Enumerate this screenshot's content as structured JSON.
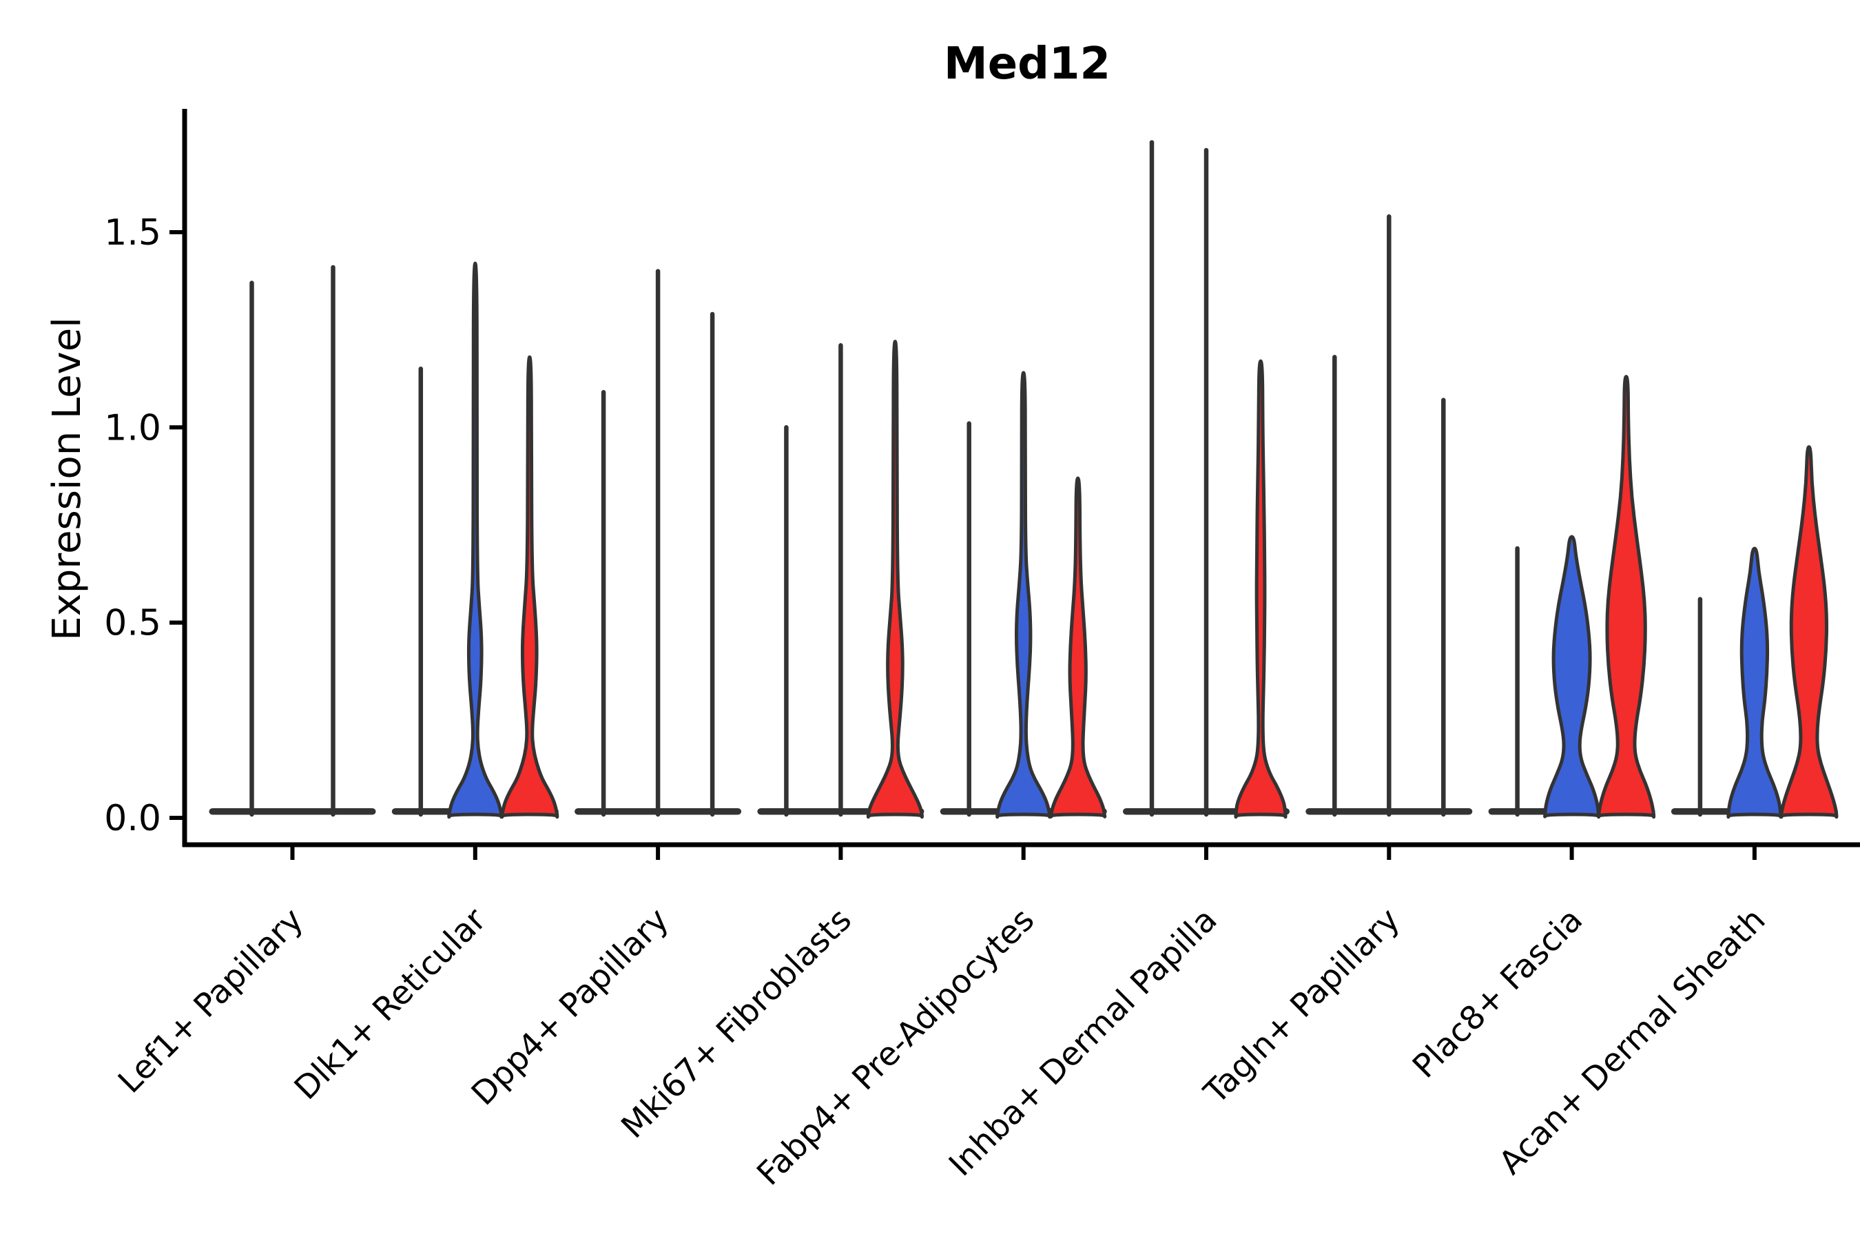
{
  "title": "Med12",
  "ylabel": "Expression Level",
  "chart_data": {
    "type": "violin",
    "title": "Med12",
    "xlabel": "",
    "ylabel": "Expression Level",
    "yticks": [
      "0.0",
      "0.5",
      "1.0",
      "1.5"
    ],
    "ytick_values": [
      0.0,
      0.5,
      1.0,
      1.5
    ],
    "ylim": [
      -0.07,
      1.82
    ],
    "grid": false,
    "legend": "none",
    "colors": {
      "blue": "#3B61D6",
      "red": "#F32C2C",
      "outline": "#333333",
      "background": "#ffffff"
    },
    "categories": [
      "Lef1+ Papillary",
      "Dlk1+ Reticular",
      "Dpp4+ Papillary",
      "Mki67+ Fibroblasts",
      "Fabp4+ Pre-Adipocytes",
      "Inhba+ Dermal Papilla",
      "Tagln+ Papillary",
      "Plac8+ Fascia",
      "Acan+ Dermal Sheath"
    ],
    "groups": [
      {
        "label": "Lef1+ Papillary",
        "violins": [
          {
            "offset": -59,
            "fill": "none",
            "max": 1.37
          },
          {
            "offset": 59,
            "fill": "none",
            "max": 1.41
          }
        ]
      },
      {
        "label": "Dlk1+ Reticular",
        "violins": [
          {
            "offset": -79,
            "fill": "none",
            "max": 1.15
          },
          {
            "offset": 0,
            "fill": "blue",
            "max": 1.42,
            "profile": [
              [
                1.42,
                2.5
              ],
              [
                1.0,
                2.5
              ],
              [
                0.62,
                3
              ],
              [
                0.54,
                6
              ],
              [
                0.47,
                9
              ],
              [
                0.41,
                9.5
              ],
              [
                0.34,
                8
              ],
              [
                0.28,
                5
              ],
              [
                0.22,
                3
              ],
              [
                0.18,
                4
              ],
              [
                0.14,
                8
              ],
              [
                0.1,
                16
              ],
              [
                0.07,
                26
              ],
              [
                0.04,
                34
              ],
              [
                0.01,
                38
              ],
              [
                0.0,
                38
              ]
            ]
          },
          {
            "offset": 79,
            "fill": "red",
            "max": 1.18,
            "profile": [
              [
                1.18,
                2.5
              ],
              [
                0.9,
                2.5
              ],
              [
                0.63,
                3.5
              ],
              [
                0.55,
                7
              ],
              [
                0.47,
                10
              ],
              [
                0.41,
                10.5
              ],
              [
                0.34,
                9
              ],
              [
                0.28,
                6
              ],
              [
                0.22,
                3.5
              ],
              [
                0.18,
                5
              ],
              [
                0.14,
                10
              ],
              [
                0.1,
                18
              ],
              [
                0.07,
                28
              ],
              [
                0.04,
                36
              ],
              [
                0.01,
                40
              ],
              [
                0.0,
                40
              ]
            ]
          }
        ]
      },
      {
        "label": "Dpp4+ Papillary",
        "violins": [
          {
            "offset": -79,
            "fill": "none",
            "max": 1.09
          },
          {
            "offset": 0,
            "fill": "none",
            "max": 1.4
          },
          {
            "offset": 79,
            "fill": "none",
            "max": 1.29
          }
        ]
      },
      {
        "label": "Mki67+ Fibroblasts",
        "violins": [
          {
            "offset": -79,
            "fill": "none",
            "max": 1.0
          },
          {
            "offset": 0,
            "fill": "none",
            "max": 1.21
          },
          {
            "offset": 79,
            "fill": "red",
            "max": 1.22,
            "profile": [
              [
                1.22,
                2.5
              ],
              [
                0.9,
                2.5
              ],
              [
                0.6,
                3.5
              ],
              [
                0.52,
                7
              ],
              [
                0.44,
                10.5
              ],
              [
                0.37,
                11
              ],
              [
                0.3,
                9
              ],
              [
                0.24,
                6
              ],
              [
                0.19,
                3.5
              ],
              [
                0.15,
                5
              ],
              [
                0.12,
                11
              ],
              [
                0.09,
                19
              ],
              [
                0.06,
                28
              ],
              [
                0.03,
                36
              ],
              [
                0.01,
                39
              ],
              [
                0.0,
                39
              ]
            ]
          }
        ]
      },
      {
        "label": "Fabp4+ Pre-Adipocytes",
        "violins": [
          {
            "offset": -79,
            "fill": "none",
            "max": 1.01
          },
          {
            "offset": 0,
            "fill": "blue",
            "max": 1.14,
            "profile": [
              [
                1.14,
                2.5
              ],
              [
                0.9,
                2.5
              ],
              [
                0.68,
                3
              ],
              [
                0.6,
                6
              ],
              [
                0.53,
                9.5
              ],
              [
                0.46,
                10.5
              ],
              [
                0.39,
                9
              ],
              [
                0.32,
                6
              ],
              [
                0.26,
                4
              ],
              [
                0.21,
                3.5
              ],
              [
                0.17,
                5
              ],
              [
                0.13,
                9
              ],
              [
                0.1,
                16
              ],
              [
                0.07,
                26
              ],
              [
                0.04,
                34
              ],
              [
                0.01,
                38
              ],
              [
                0.0,
                38
              ]
            ]
          },
          {
            "offset": 79,
            "fill": "red",
            "max": 0.87,
            "profile": [
              [
                0.87,
                2.5
              ],
              [
                0.7,
                3
              ],
              [
                0.6,
                4.5
              ],
              [
                0.52,
                8
              ],
              [
                0.44,
                11
              ],
              [
                0.36,
                12
              ],
              [
                0.29,
                10
              ],
              [
                0.23,
                8
              ],
              [
                0.18,
                7
              ],
              [
                0.14,
                9
              ],
              [
                0.11,
                15
              ],
              [
                0.08,
                23
              ],
              [
                0.05,
                32
              ],
              [
                0.02,
                38
              ],
              [
                0.0,
                39
              ]
            ]
          }
        ]
      },
      {
        "label": "Inhba+ Dermal Papilla",
        "violins": [
          {
            "offset": -79,
            "fill": "none",
            "max": 1.73
          },
          {
            "offset": 0,
            "fill": "none",
            "max": 1.71
          },
          {
            "offset": 79,
            "fill": "red",
            "max": 1.17,
            "profile": [
              [
                1.17,
                2.5
              ],
              [
                1.0,
                3
              ],
              [
                0.88,
                4
              ],
              [
                0.78,
                5
              ],
              [
                0.68,
                5.5
              ],
              [
                0.58,
                6
              ],
              [
                0.48,
                5.5
              ],
              [
                0.4,
                5
              ],
              [
                0.32,
                4
              ],
              [
                0.25,
                3
              ],
              [
                0.19,
                3.5
              ],
              [
                0.15,
                6
              ],
              [
                0.11,
                14
              ],
              [
                0.08,
                24
              ],
              [
                0.04,
                34
              ],
              [
                0.01,
                36
              ],
              [
                0.0,
                36
              ]
            ]
          }
        ]
      },
      {
        "label": "Tagln+ Papillary",
        "violins": [
          {
            "offset": -79,
            "fill": "none",
            "max": 1.18
          },
          {
            "offset": 0,
            "fill": "none",
            "max": 1.54
          },
          {
            "offset": 79,
            "fill": "none",
            "max": 1.07
          }
        ]
      },
      {
        "label": "Plac8+ Fascia",
        "violins": [
          {
            "offset": -79,
            "fill": "none",
            "max": 0.69
          },
          {
            "offset": 0,
            "fill": "blue",
            "max": 0.72,
            "profile": [
              [
                0.72,
                3
              ],
              [
                0.67,
                6
              ],
              [
                0.61,
                12
              ],
              [
                0.54,
                20
              ],
              [
                0.47,
                25
              ],
              [
                0.41,
                27
              ],
              [
                0.34,
                25
              ],
              [
                0.28,
                20
              ],
              [
                0.23,
                14
              ],
              [
                0.19,
                11
              ],
              [
                0.15,
                13
              ],
              [
                0.11,
                22
              ],
              [
                0.07,
                32
              ],
              [
                0.03,
                38
              ],
              [
                0.0,
                39
              ]
            ]
          },
          {
            "offset": 79,
            "fill": "red",
            "max": 1.13,
            "profile": [
              [
                1.13,
                2.5
              ],
              [
                1.02,
                3
              ],
              [
                0.92,
                4.5
              ],
              [
                0.82,
                8
              ],
              [
                0.72,
                15
              ],
              [
                0.63,
                22
              ],
              [
                0.55,
                27
              ],
              [
                0.47,
                28
              ],
              [
                0.39,
                26
              ],
              [
                0.31,
                21
              ],
              [
                0.25,
                15
              ],
              [
                0.2,
                12
              ],
              [
                0.16,
                13
              ],
              [
                0.12,
                20
              ],
              [
                0.08,
                30
              ],
              [
                0.04,
                37
              ],
              [
                0.01,
                40
              ],
              [
                0.0,
                40
              ]
            ]
          }
        ]
      },
      {
        "label": "Acan+ Dermal Sheath",
        "violins": [
          {
            "offset": -79,
            "fill": "none",
            "max": 0.56
          },
          {
            "offset": 0,
            "fill": "blue",
            "max": 0.69,
            "profile": [
              [
                0.69,
                3
              ],
              [
                0.63,
                6
              ],
              [
                0.57,
                12
              ],
              [
                0.5,
                17
              ],
              [
                0.44,
                19
              ],
              [
                0.37,
                18
              ],
              [
                0.3,
                15
              ],
              [
                0.25,
                11
              ],
              [
                0.2,
                10
              ],
              [
                0.16,
                12
              ],
              [
                0.12,
                19
              ],
              [
                0.08,
                29
              ],
              [
                0.04,
                36
              ],
              [
                0.01,
                38
              ],
              [
                0.0,
                38
              ]
            ]
          },
          {
            "offset": 79,
            "fill": "red",
            "max": 0.95,
            "profile": [
              [
                0.95,
                2.5
              ],
              [
                0.86,
                4
              ],
              [
                0.77,
                9
              ],
              [
                0.68,
                16
              ],
              [
                0.59,
                23
              ],
              [
                0.51,
                26
              ],
              [
                0.43,
                25
              ],
              [
                0.35,
                21
              ],
              [
                0.28,
                15
              ],
              [
                0.23,
                12
              ],
              [
                0.18,
                12
              ],
              [
                0.14,
                17
              ],
              [
                0.1,
                25
              ],
              [
                0.06,
                33
              ],
              [
                0.03,
                38
              ],
              [
                0.01,
                40
              ],
              [
                0.0,
                40
              ]
            ]
          }
        ]
      }
    ]
  }
}
